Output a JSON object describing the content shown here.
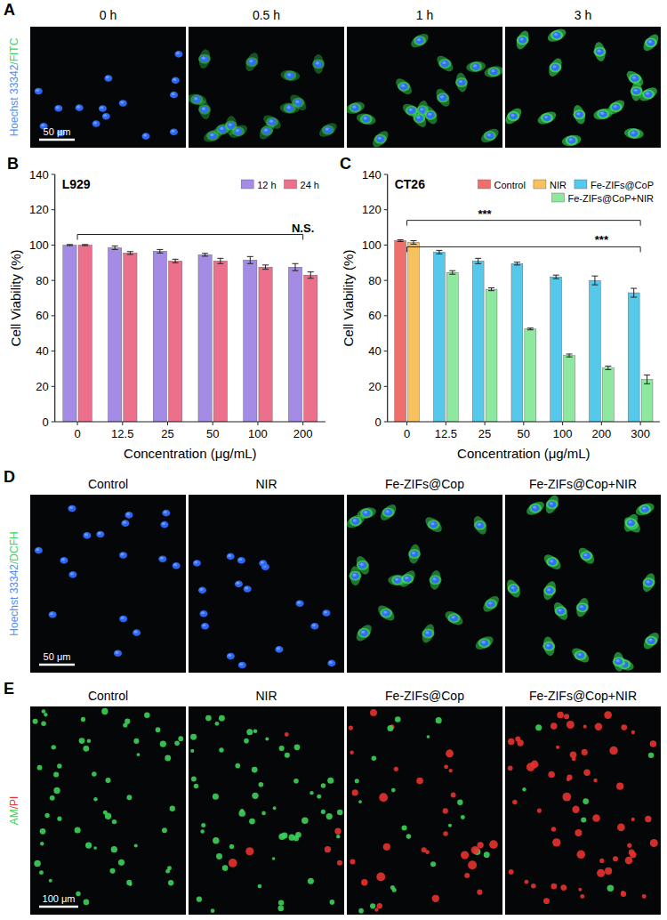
{
  "chart_data": [
    {
      "type": "bar",
      "letter": "B",
      "title": "L929",
      "categories": [
        "0",
        "12.5",
        "25",
        "50",
        "100",
        "200"
      ],
      "series": [
        {
          "name": "12 h",
          "color": "#a48be6",
          "values": [
            100,
            98.5,
            96.5,
            94.5,
            91.5,
            87.5
          ],
          "errors": [
            0.3,
            1,
            1,
            0.8,
            2,
            2
          ]
        },
        {
          "name": "24 h",
          "color": "#ec6f8c",
          "values": [
            100,
            95.5,
            91,
            91,
            87.5,
            83
          ],
          "errors": [
            0.3,
            0.8,
            1,
            1.5,
            1.2,
            1.8
          ]
        }
      ],
      "ylim": [
        0,
        140
      ],
      "yticks": [
        0,
        20,
        40,
        60,
        80,
        100,
        120,
        140
      ],
      "x_label": "Concentration (μg/mL)",
      "y_label": "Cell Viability (%)",
      "grid": false,
      "legend": "upper-right",
      "annotations": [
        {
          "text": "N.S.",
          "from": "0",
          "to": "200",
          "at": "200",
          "y": 106
        }
      ]
    },
    {
      "type": "bar",
      "letter": "C",
      "title": "CT26",
      "categories": [
        "0",
        "12.5",
        "25",
        "50",
        "100",
        "200",
        "300"
      ],
      "series": [
        {
          "name": "Control",
          "color": "#ef6f6c",
          "values": [
            102.5,
            null,
            null,
            null,
            null,
            null,
            null
          ],
          "errors": [
            0.5,
            null,
            null,
            null,
            null,
            null,
            null
          ]
        },
        {
          "name": "NIR",
          "color": "#f7c25e",
          "values": [
            101.5,
            null,
            null,
            null,
            null,
            null,
            null
          ],
          "errors": [
            1,
            null,
            null,
            null,
            null,
            null,
            null
          ]
        },
        {
          "name": "Fe-ZIFs@CoP",
          "color": "#56c8ea",
          "values": [
            null,
            96,
            91,
            89.5,
            82,
            80,
            73
          ],
          "errors": [
            null,
            1,
            1.5,
            0.8,
            1,
            2.5,
            2.5
          ]
        },
        {
          "name": "Fe-ZIFs@CoP+NIR",
          "color": "#8fe8a0",
          "values": [
            null,
            84.5,
            75,
            52.5,
            37.5,
            30.5,
            24
          ],
          "errors": [
            null,
            1,
            0.8,
            0.5,
            0.8,
            1,
            2.5
          ]
        }
      ],
      "ylim": [
        0,
        140
      ],
      "yticks": [
        0,
        20,
        40,
        60,
        80,
        100,
        120,
        140
      ],
      "x_label": "Concentration (μg/mL)",
      "y_label": "Cell Viability (%)",
      "grid": false,
      "legend": "upper-right",
      "annotations": [
        {
          "text": "***",
          "from": "0",
          "to": "300",
          "at": "25",
          "y": 114
        },
        {
          "text": "***",
          "from": "0",
          "to": "300",
          "at": "200",
          "y": 99
        }
      ]
    }
  ],
  "image_panels": [
    {
      "letter": "A",
      "channel_label": [
        "Hoechst 33342",
        "/FITC"
      ],
      "colors": [
        "#4f8dff",
        "#3cd35a"
      ],
      "titles": [
        "0 h",
        "0.5 h",
        "1 h",
        "3 h"
      ],
      "scale_bar": "50 μm"
    },
    {
      "letter": "D",
      "channel_label": [
        "Hoechst 33342",
        "/DCFH"
      ],
      "colors": [
        "#4f8dff",
        "#3cd35a"
      ],
      "titles": [
        "Control",
        "NIR",
        "Fe-ZIFs@Cop",
        "Fe-ZIFs@Cop+NIR"
      ],
      "scale_bar": "50 μm"
    },
    {
      "letter": "E",
      "channel_label": [
        "AM",
        "/PI"
      ],
      "colors": [
        "#3cd35a",
        "#e8322f"
      ],
      "titles": [
        "Control",
        "NIR",
        "Fe-ZIFs@Cop",
        "Fe-ZIFs@Cop+NIR"
      ],
      "scale_bar": "100 μm"
    }
  ]
}
